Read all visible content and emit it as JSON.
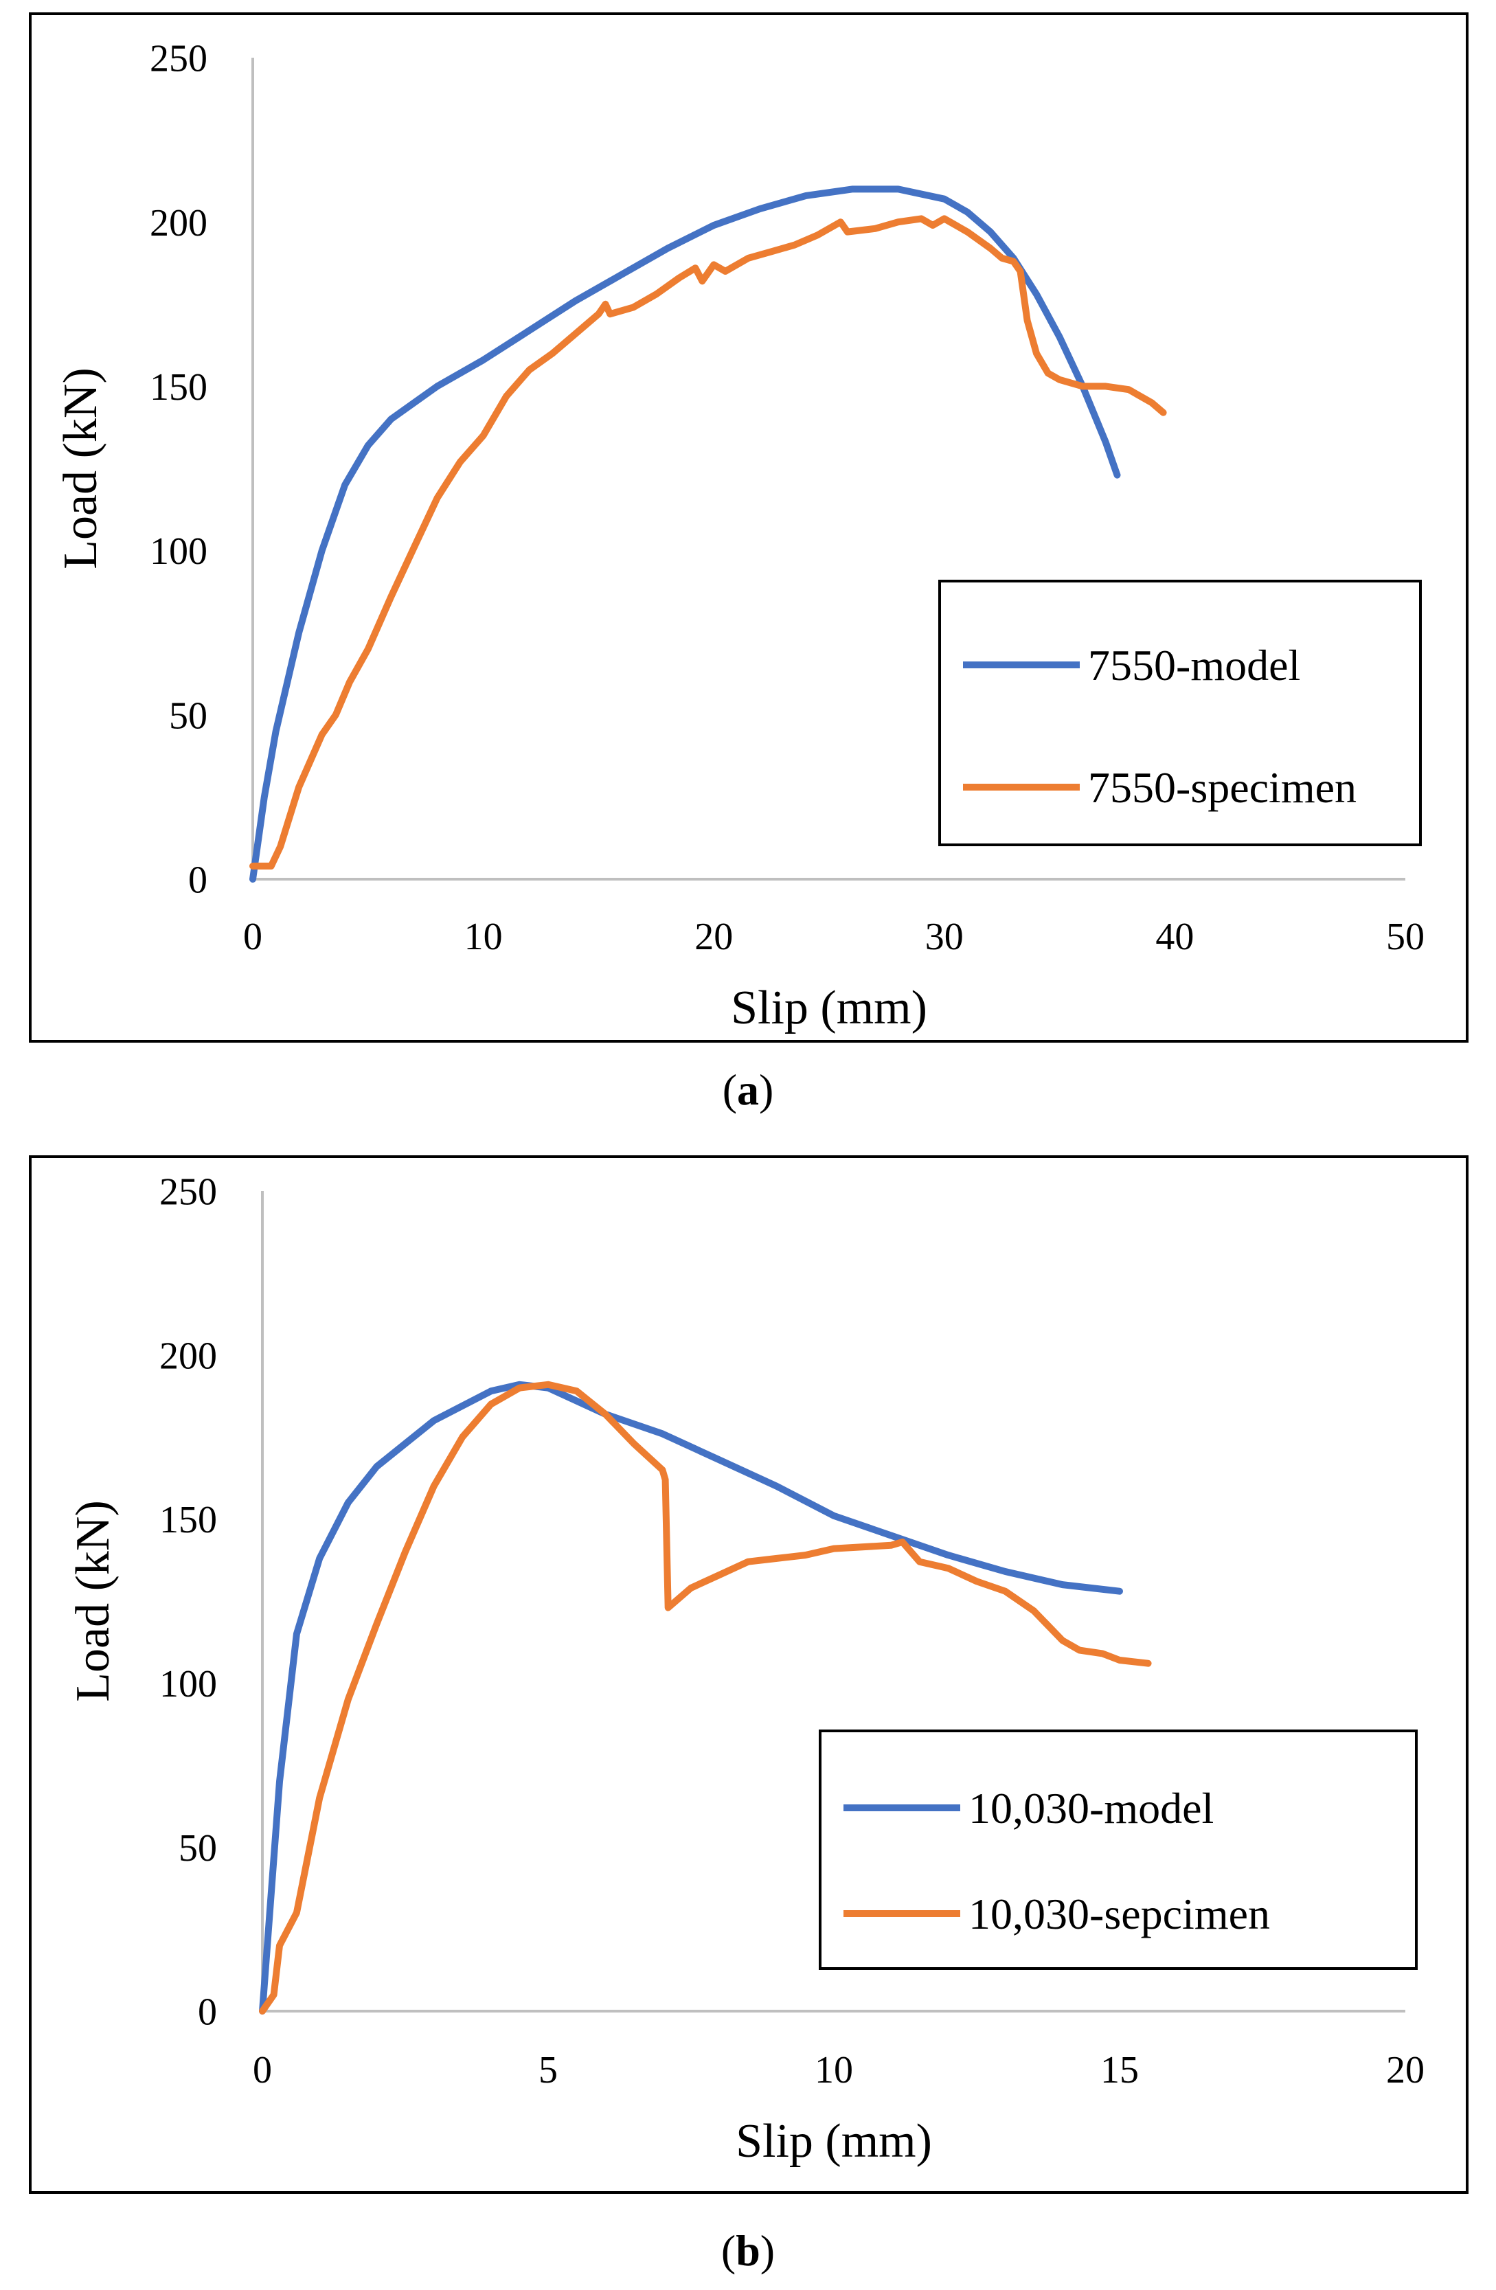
{
  "chart_data": [
    {
      "type": "line",
      "panel_label": "a",
      "xlabel": "Slip (mm)",
      "ylabel": "Load (kN)",
      "xlim": [
        0,
        50
      ],
      "ylim": [
        0,
        250
      ],
      "xticks": [
        0,
        10,
        20,
        30,
        40,
        50
      ],
      "yticks": [
        0,
        50,
        100,
        150,
        200,
        250
      ],
      "legend_position": "lower-right",
      "series": [
        {
          "name": "7550-model",
          "color": "#4472C4",
          "points": [
            [
              0,
              0
            ],
            [
              0.5,
              25
            ],
            [
              1,
              45
            ],
            [
              2,
              75
            ],
            [
              3,
              100
            ],
            [
              4,
              120
            ],
            [
              5,
              132
            ],
            [
              6,
              140
            ],
            [
              7,
              145
            ],
            [
              8,
              150
            ],
            [
              10,
              158
            ],
            [
              12,
              167
            ],
            [
              14,
              176
            ],
            [
              16,
              184
            ],
            [
              18,
              192
            ],
            [
              20,
              199
            ],
            [
              22,
              204
            ],
            [
              24,
              208
            ],
            [
              26,
              210
            ],
            [
              28,
              210
            ],
            [
              30,
              207
            ],
            [
              31,
              203
            ],
            [
              32,
              197
            ],
            [
              33,
              189
            ],
            [
              34,
              178
            ],
            [
              35,
              165
            ],
            [
              36,
              150
            ],
            [
              37,
              133
            ],
            [
              37.5,
              123
            ]
          ]
        },
        {
          "name": "7550-specimen",
          "color": "#ED7D31",
          "points": [
            [
              0,
              4
            ],
            [
              0.8,
              4
            ],
            [
              1.2,
              10
            ],
            [
              2,
              28
            ],
            [
              3,
              44
            ],
            [
              3.6,
              50
            ],
            [
              4.2,
              60
            ],
            [
              5,
              70
            ],
            [
              6,
              86
            ],
            [
              7,
              101
            ],
            [
              8,
              116
            ],
            [
              9,
              127
            ],
            [
              10,
              135
            ],
            [
              11,
              147
            ],
            [
              12,
              155
            ],
            [
              13,
              160
            ],
            [
              14,
              166
            ],
            [
              15,
              172
            ],
            [
              15.3,
              175
            ],
            [
              15.5,
              172
            ],
            [
              16.5,
              174
            ],
            [
              17.5,
              178
            ],
            [
              18.5,
              183
            ],
            [
              19.2,
              186
            ],
            [
              19.5,
              182
            ],
            [
              20,
              187
            ],
            [
              20.5,
              185
            ],
            [
              21.5,
              189
            ],
            [
              22.5,
              191
            ],
            [
              23.5,
              193
            ],
            [
              24.5,
              196
            ],
            [
              25.5,
              200
            ],
            [
              25.8,
              197
            ],
            [
              27,
              198
            ],
            [
              28,
              200
            ],
            [
              29,
              201
            ],
            [
              29.5,
              199
            ],
            [
              30,
              201
            ],
            [
              31,
              197
            ],
            [
              32,
              192
            ],
            [
              32.5,
              189
            ],
            [
              33,
              188
            ],
            [
              33.3,
              185
            ],
            [
              33.6,
              170
            ],
            [
              34,
              160
            ],
            [
              34.5,
              154
            ],
            [
              35,
              152
            ],
            [
              36,
              150
            ],
            [
              37,
              150
            ],
            [
              38,
              149
            ],
            [
              39,
              145
            ],
            [
              39.5,
              142
            ]
          ]
        }
      ]
    },
    {
      "type": "line",
      "panel_label": "b",
      "xlabel": "Slip (mm)",
      "ylabel": "Load (kN)",
      "xlim": [
        0,
        20
      ],
      "ylim": [
        0,
        250
      ],
      "xticks": [
        0,
        5,
        10,
        15,
        20
      ],
      "yticks": [
        0,
        50,
        100,
        150,
        200,
        250
      ],
      "legend_position": "lower-right",
      "series": [
        {
          "name": "10,030-model",
          "color": "#4472C4",
          "points": [
            [
              0,
              0
            ],
            [
              0.3,
              70
            ],
            [
              0.6,
              115
            ],
            [
              1,
              138
            ],
            [
              1.5,
              155
            ],
            [
              2,
              166
            ],
            [
              3,
              180
            ],
            [
              4,
              189
            ],
            [
              4.5,
              191
            ],
            [
              5,
              190
            ],
            [
              5.5,
              186
            ],
            [
              6,
              182
            ],
            [
              7,
              176
            ],
            [
              8,
              168
            ],
            [
              9,
              160
            ],
            [
              10,
              151
            ],
            [
              11,
              145
            ],
            [
              12,
              139
            ],
            [
              13,
              134
            ],
            [
              14,
              130
            ],
            [
              15,
              128
            ]
          ]
        },
        {
          "name": "10,030-sepcimen",
          "color": "#ED7D31",
          "points": [
            [
              0,
              0
            ],
            [
              0.2,
              5
            ],
            [
              0.3,
              20
            ],
            [
              0.6,
              30
            ],
            [
              1,
              65
            ],
            [
              1.5,
              95
            ],
            [
              2,
              118
            ],
            [
              2.5,
              140
            ],
            [
              3,
              160
            ],
            [
              3.5,
              175
            ],
            [
              4,
              185
            ],
            [
              4.5,
              190
            ],
            [
              5,
              191
            ],
            [
              5.5,
              189
            ],
            [
              6,
              182
            ],
            [
              6.5,
              173
            ],
            [
              7,
              165
            ],
            [
              7.05,
              162
            ],
            [
              7.1,
              123
            ],
            [
              7.5,
              129
            ],
            [
              8,
              133
            ],
            [
              8.5,
              137
            ],
            [
              9,
              138
            ],
            [
              9.5,
              139
            ],
            [
              10,
              141
            ],
            [
              11,
              142
            ],
            [
              11.2,
              143
            ],
            [
              11.5,
              137
            ],
            [
              12,
              135
            ],
            [
              12.5,
              131
            ],
            [
              13,
              128
            ],
            [
              13.5,
              122
            ],
            [
              14,
              113
            ],
            [
              14.3,
              110
            ],
            [
              14.7,
              109
            ],
            [
              15,
              107
            ],
            [
              15.5,
              106
            ]
          ]
        }
      ]
    }
  ]
}
